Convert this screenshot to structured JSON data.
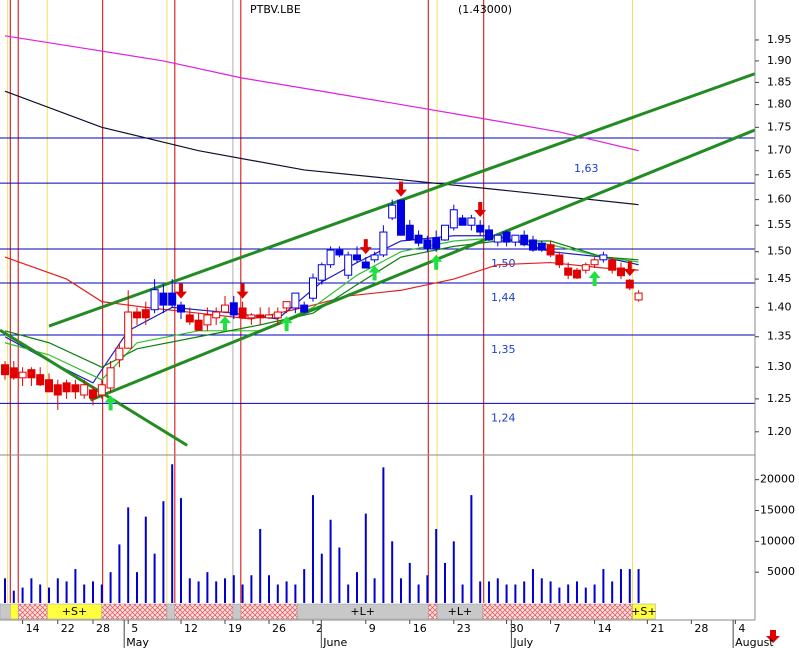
{
  "chart_data": {
    "type": "candlestick",
    "title": "PTBV.LBE",
    "subtitle": "(1.43000)",
    "xlim": [
      -0.568,
      85.23
    ],
    "xticks": [
      {
        "value": 2,
        "label": "14"
      },
      {
        "value": 6,
        "label": "22"
      },
      {
        "value": 10,
        "label": "28"
      },
      {
        "value": 14,
        "label": "5"
      },
      {
        "value": 20,
        "label": "12"
      },
      {
        "value": 25,
        "label": "19"
      },
      {
        "value": 30,
        "label": "26"
      },
      {
        "value": 35,
        "label": "2"
      },
      {
        "value": 41,
        "label": "9"
      },
      {
        "value": 46,
        "label": "16"
      },
      {
        "value": 51,
        "label": "23"
      },
      {
        "value": 57,
        "label": "30"
      },
      {
        "value": 62,
        "label": "7"
      },
      {
        "value": 67,
        "label": "14"
      },
      {
        "value": 73,
        "label": "21"
      },
      {
        "value": 78,
        "label": "28"
      },
      {
        "value": 83,
        "label": "4"
      }
    ],
    "month_ticks": [
      {
        "value": 14,
        "label": "May"
      },
      {
        "value": 36.4,
        "label": "June"
      },
      {
        "value": 58,
        "label": "July"
      },
      {
        "value": 83.2,
        "label": "August"
      }
    ],
    "ylim": [
      1.166,
      2.049
    ],
    "log_scale": true,
    "yticks": [
      1.95,
      {
        "value": 1.9,
        "label": "1.90"
      },
      1.85,
      {
        "value": 1.8,
        "label": "1.80"
      },
      1.75,
      {
        "value": 1.7,
        "label": "1.70"
      },
      1.65,
      {
        "value": 1.6,
        "label": "1.60"
      },
      1.55,
      {
        "value": 1.5,
        "label": "1.50"
      },
      1.45,
      {
        "value": 1.4,
        "label": "1.40"
      },
      1.35,
      {
        "value": 1.3,
        "label": "1.30"
      },
      1.25,
      {
        "value": 1.2,
        "label": "1.20"
      }
    ],
    "open": [
      1.304,
      1.299,
      1.283,
      1.296,
      1.288,
      1.28,
      1.272,
      1.275,
      1.272,
      1.256,
      1.264,
      1.256,
      1.267,
      1.312,
      1.331,
      1.392,
      1.396,
      1.396,
      1.425,
      1.425,
      1.404,
      1.387,
      1.378,
      1.37,
      1.382,
      1.392,
      1.408,
      1.399,
      1.382,
      1.387,
      1.382,
      1.382,
      1.399,
      1.399,
      1.404,
      1.416,
      1.448,
      1.476,
      1.503,
      1.457,
      1.494,
      1.481,
      1.485,
      1.494,
      1.564,
      1.599,
      1.55,
      1.531,
      1.522,
      1.526,
      1.522,
      1.545,
      1.564,
      1.55,
      1.55,
      1.541,
      1.518,
      1.537,
      1.518,
      1.531,
      1.522,
      1.516,
      1.513,
      1.494,
      1.47,
      1.466,
      1.466,
      1.476,
      1.485,
      1.485,
      1.47,
      1.448,
      1.413
    ],
    "high": [
      1.31,
      1.31,
      1.3,
      1.3,
      1.3,
      1.29,
      1.28,
      1.28,
      1.28,
      1.28,
      1.27,
      1.28,
      1.31,
      1.34,
      1.43,
      1.4,
      1.41,
      1.45,
      1.44,
      1.45,
      1.41,
      1.4,
      1.39,
      1.4,
      1.4,
      1.42,
      1.42,
      1.41,
      1.39,
      1.4,
      1.4,
      1.4,
      1.41,
      1.42,
      1.41,
      1.46,
      1.48,
      1.51,
      1.51,
      1.5,
      1.51,
      1.49,
      1.5,
      1.55,
      1.6,
      1.6,
      1.56,
      1.54,
      1.53,
      1.54,
      1.55,
      1.59,
      1.57,
      1.57,
      1.56,
      1.55,
      1.53,
      1.54,
      1.53,
      1.54,
      1.53,
      1.52,
      1.52,
      1.5,
      1.48,
      1.47,
      1.48,
      1.49,
      1.5,
      1.49,
      1.48,
      1.45,
      1.43
    ],
    "low": [
      1.28,
      1.28,
      1.27,
      1.27,
      1.27,
      1.26,
      1.233,
      1.25,
      1.25,
      1.25,
      1.24,
      1.25,
      1.26,
      1.3,
      1.33,
      1.37,
      1.37,
      1.39,
      1.39,
      1.4,
      1.38,
      1.37,
      1.36,
      1.36,
      1.37,
      1.39,
      1.38,
      1.38,
      1.37,
      1.37,
      1.38,
      1.37,
      1.39,
      1.39,
      1.39,
      1.41,
      1.44,
      1.47,
      1.49,
      1.45,
      1.48,
      1.47,
      1.48,
      1.49,
      1.56,
      1.53,
      1.52,
      1.51,
      1.5,
      1.5,
      1.52,
      1.54,
      1.55,
      1.54,
      1.53,
      1.52,
      1.51,
      1.51,
      1.51,
      1.51,
      1.5,
      1.5,
      1.49,
      1.47,
      1.45,
      1.45,
      1.46,
      1.47,
      1.48,
      1.46,
      1.45,
      1.43,
      1.41
    ],
    "close": [
      1.288,
      1.283,
      1.292,
      1.283,
      1.272,
      1.261,
      1.256,
      1.261,
      1.261,
      1.272,
      1.251,
      1.272,
      1.299,
      1.331,
      1.392,
      1.382,
      1.382,
      1.431,
      1.404,
      1.404,
      1.392,
      1.375,
      1.361,
      1.387,
      1.392,
      1.404,
      1.387,
      1.382,
      1.387,
      1.382,
      1.387,
      1.392,
      1.41,
      1.425,
      1.392,
      1.452,
      1.476,
      1.503,
      1.494,
      1.494,
      1.485,
      1.47,
      1.494,
      1.537,
      1.589,
      1.531,
      1.522,
      1.516,
      1.507,
      1.507,
      1.55,
      1.58,
      1.55,
      1.564,
      1.537,
      1.522,
      1.531,
      1.518,
      1.531,
      1.513,
      1.503,
      1.503,
      1.494,
      1.476,
      1.457,
      1.452,
      1.476,
      1.485,
      1.494,
      1.466,
      1.456,
      1.434,
      1.425
    ],
    "candle_colors": [
      "#e00000",
      "#e00000",
      "#e00000",
      "#e00000",
      "#e00000",
      "#e00000",
      "#e00000",
      "#e00000",
      "#e00000",
      "#e00000",
      "#e00000",
      "#e00000",
      "#e00000",
      "#e00000",
      "#e00000",
      "#e00000",
      "#e00000",
      "#0000e0",
      "#0000e0",
      "#0000e0",
      "#0000e0",
      "#e00000",
      "#e00000",
      "#e00000",
      "#e00000",
      "#e00000",
      "#0000e0",
      "#e00000",
      "#e00000",
      "#e00000",
      "#e00000",
      "#e00000",
      "#e00000",
      "#0000e0",
      "#0000e0",
      "#0000e0",
      "#0000e0",
      "#0000e0",
      "#0000e0",
      "#0000e0",
      "#0000e0",
      "#0000e0",
      "#0000e0",
      "#0000e0",
      "#0000e0",
      "#0000e0",
      "#0000e0",
      "#0000e0",
      "#0000e0",
      "#0000e0",
      "#0000e0",
      "#0000e0",
      "#0000e0",
      "#0000e0",
      "#0000e0",
      "#0000e0",
      "#0000e0",
      "#0000e0",
      "#0000e0",
      "#0000e0",
      "#0000e0",
      "#0000e0",
      "#e00000",
      "#e00000",
      "#e00000",
      "#e00000",
      "#e00000",
      "#e00000",
      "#0000e0",
      "#e00000",
      "#e00000",
      "#e00000",
      "#e00000"
    ],
    "volume": {
      "color": "#0000cc",
      "ylim": [
        0,
        24000
      ],
      "yticks": [
        5000,
        10000,
        15000,
        20000
      ],
      "values": [
        4000,
        2000,
        2500,
        4000,
        3000,
        2500,
        4000,
        3500,
        5500,
        3000,
        3500,
        3000,
        5000,
        9500,
        15500,
        5000,
        14000,
        8000,
        16500,
        22500,
        17000,
        4000,
        3500,
        5000,
        3500,
        4000,
        4500,
        3000,
        4500,
        12000,
        4500,
        3000,
        3500,
        3000,
        5500,
        17500,
        8000,
        13500,
        9000,
        3000,
        5000,
        14500,
        4000,
        22000,
        10000,
        4000,
        6500,
        3000,
        4500,
        12000,
        6500,
        10000,
        3000,
        17500,
        3500,
        3500,
        4000,
        3000,
        3000,
        3500,
        5500,
        4000,
        3500,
        2500,
        3000,
        3500,
        2500,
        3000,
        5500,
        3500,
        5500,
        5500,
        5500
      ]
    },
    "series": [
      {
        "color": "#e020e0",
        "x": [
          0,
          9,
          18,
          27,
          36,
          45,
          54,
          63,
          72
        ],
        "values": [
          1.96,
          1.93,
          1.9,
          1.86,
          1.83,
          1.8,
          1.77,
          1.74,
          1.7
        ]
      },
      {
        "color": "#101030",
        "x": [
          0,
          11,
          22,
          34,
          45,
          56,
          72
        ],
        "values": [
          1.83,
          1.75,
          1.7,
          1.66,
          1.64,
          1.62,
          1.59
        ]
      },
      {
        "color": "#e02020",
        "x": [
          0,
          7,
          11,
          16,
          22,
          28,
          34,
          39,
          45,
          51,
          56,
          62,
          68,
          72
        ],
        "values": [
          1.49,
          1.45,
          1.41,
          1.4,
          1.39,
          1.38,
          1.4,
          1.42,
          1.43,
          1.45,
          1.476,
          1.48,
          1.47,
          1.466
        ]
      },
      {
        "color": "#2020c0",
        "x": [
          0,
          5,
          10,
          14,
          19,
          26,
          31,
          36,
          40,
          45,
          51,
          56,
          62,
          68,
          72
        ],
        "values": [
          1.35,
          1.31,
          1.275,
          1.36,
          1.4,
          1.39,
          1.38,
          1.445,
          1.48,
          1.52,
          1.53,
          1.53,
          1.5,
          1.49,
          1.476
        ]
      },
      {
        "color": "#30c030",
        "x": [
          0,
          5,
          11,
          15,
          22,
          29,
          35,
          40,
          45,
          51,
          56,
          62,
          68,
          72
        ],
        "values": [
          1.34,
          1.32,
          1.28,
          1.34,
          1.36,
          1.36,
          1.4,
          1.457,
          1.5,
          1.52,
          1.526,
          1.513,
          1.49,
          1.481
        ]
      },
      {
        "color": "#108010",
        "x": [
          0,
          5,
          11,
          15,
          22,
          29,
          35,
          40,
          45,
          51,
          56,
          62,
          68,
          72
        ],
        "values": [
          1.36,
          1.34,
          1.3,
          1.33,
          1.35,
          1.37,
          1.39,
          1.44,
          1.49,
          1.51,
          1.52,
          1.52,
          1.49,
          1.485
        ]
      }
    ],
    "trendline_color": "#228b22",
    "trendlines": [
      {
        "x": [
          5,
          85.2
        ],
        "values": [
          1.368,
          1.87
        ]
      },
      {
        "x": [
          9.7,
          85.2
        ],
        "values": [
          1.248,
          1.744
        ]
      },
      {
        "x": [
          -0.568,
          20.7
        ],
        "values": [
          1.361,
          1.18
        ]
      }
    ],
    "level_color": "#0000c0",
    "levels": [
      1.727,
      {
        "value": 1.633,
        "label": "1,63"
      },
      {
        "value": 1.505,
        "label": "1,50"
      },
      {
        "value": 1.443,
        "label": "1,44"
      },
      {
        "value": 1.353,
        "label": "1,35"
      },
      {
        "value": 1.243,
        "label": "1,24"
      }
    ],
    "vlines": [
      {
        "color": "#d00000",
        "x": [
          0.6,
          1.5,
          11.1,
          19.3,
          26.8,
          48.1,
          54.4
        ]
      },
      {
        "color": "#f0e060",
        "x": [
          0.3,
          4.8,
          18.4,
          49.1,
          71.3
        ]
      },
      {
        "color": "#b0b0b0",
        "x": [
          25.9
        ]
      }
    ],
    "sell_arrows": {
      "color": "#e00000",
      "x": [
        20,
        27,
        41,
        45,
        54,
        71
      ]
    },
    "buy_arrows": {
      "color": "#20e040",
      "x": [
        12,
        25,
        32,
        42,
        49,
        67
      ]
    },
    "strip": [
      {
        "x": [
          -0.568,
          0.6
        ],
        "color": "#c8c8c8"
      },
      {
        "x": [
          0.6,
          1.5
        ],
        "color": "#ffff40"
      },
      {
        "x": [
          1.5,
          4.8
        ],
        "color": "#ffe0e0",
        "pattern": "cross"
      },
      {
        "x": [
          4.8,
          11
        ],
        "color": "#ffff40",
        "label": "+S+"
      },
      {
        "x": [
          11,
          18.4
        ],
        "color": "#ffe0e0",
        "pattern": "cross"
      },
      {
        "x": [
          18.4,
          19.3
        ],
        "color": "#c8c8c8"
      },
      {
        "x": [
          19.3,
          25.9
        ],
        "color": "#ffe0e0",
        "pattern": "cross"
      },
      {
        "x": [
          25.9,
          26.8
        ],
        "color": "#c8c8c8"
      },
      {
        "x": [
          26.8,
          33.2
        ],
        "color": "#ffe0e0",
        "pattern": "cross"
      },
      {
        "x": [
          33.2,
          48.1
        ],
        "color": "#c8c8c8",
        "label": "+L+"
      },
      {
        "x": [
          48.1,
          49.1
        ],
        "color": "#ffe0e0",
        "pattern": "cross"
      },
      {
        "x": [
          49.1,
          54.3
        ],
        "color": "#c8c8c8",
        "label": "+L+"
      },
      {
        "x": [
          54.3,
          71.3
        ],
        "color": "#ffe0e0",
        "pattern": "cross"
      },
      {
        "x": [
          71.3,
          73.9
        ],
        "color": "#ffff40",
        "label": "+S+"
      }
    ]
  }
}
